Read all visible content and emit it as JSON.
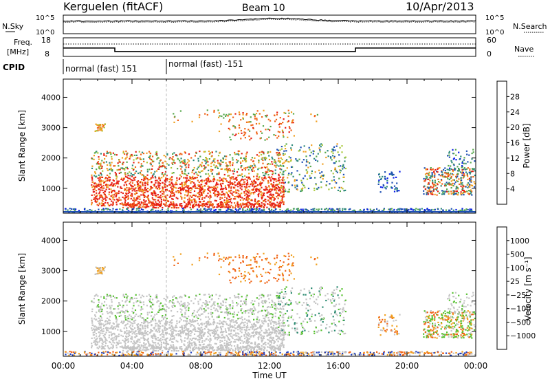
{
  "header": {
    "station": "Kerguelen",
    "mode": "(fitACF)",
    "beam": "Beam 10",
    "date": "10/Apr/2013"
  },
  "noise_panel": {
    "left_label": "N.Sky",
    "right_label": "N.Search",
    "left_ticks": [
      "10^5",
      "10^0"
    ],
    "right_ticks": [
      "10^5",
      "10^0"
    ]
  },
  "freq_panel": {
    "left_label_top": "Freq.",
    "left_label_unit": "[MHz]",
    "right_label": "Nave",
    "left_ticks": [
      "18",
      "8"
    ],
    "right_ticks": [
      "60",
      "0"
    ],
    "freq_steps": [
      {
        "t0": 0,
        "t1": 3,
        "f": 12.5
      },
      {
        "t0": 3,
        "t1": 17,
        "f": 10.6
      },
      {
        "t0": 17,
        "t1": 24,
        "f": 12.5
      }
    ]
  },
  "cpid_panel": {
    "label": "CPID",
    "segments": [
      {
        "start": 0,
        "text": "normal (fast) 151"
      },
      {
        "start": 6,
        "text": "normal (fast) -151"
      }
    ]
  },
  "chart_data": [
    {
      "type": "heatmap",
      "name": "power",
      "ylabel": "Slant Range [km]",
      "xlabel": "Time UT",
      "ylim": [
        180,
        4600
      ],
      "xlim": [
        0,
        24
      ],
      "y_ticks": [
        "1000",
        "2000",
        "3000",
        "4000"
      ],
      "x_ticks": [
        "00:00",
        "04:00",
        "08:00",
        "12:00",
        "16:00",
        "20:00",
        "00:00"
      ],
      "colorbar": {
        "label": "Power [dB]",
        "ticks": [
          "4",
          "8",
          "12",
          "16",
          "20",
          "24",
          "28"
        ],
        "colors": [
          "#0a1ee6",
          "#1e50b4",
          "#2e8a7a",
          "#58a84c",
          "#a8c83a",
          "#f0a020",
          "#f06418",
          "#e61e14"
        ]
      }
    },
    {
      "type": "heatmap",
      "name": "velocity",
      "ylabel": "Slant Range [km]",
      "xlabel": "Time UT",
      "ylim": [
        180,
        4600
      ],
      "xlim": [
        0,
        24
      ],
      "y_ticks": [
        "1000",
        "2000",
        "3000",
        "4000"
      ],
      "x_ticks": [
        "00:00",
        "04:00",
        "08:00",
        "12:00",
        "16:00",
        "20:00",
        "00:00"
      ],
      "colorbar": {
        "label": "Velocity [m s⁻¹]",
        "ticks": [
          "1000",
          "500",
          "100",
          "25",
          "−25",
          "−100",
          "−500",
          "−1000"
        ],
        "colors": [
          "#2040c0",
          "#2a8a70",
          "#56c030",
          "#c4c4c4",
          "#c4c4c4",
          "#f0a020",
          "#f06418",
          "#e61e14",
          "#e61e14"
        ]
      }
    }
  ]
}
